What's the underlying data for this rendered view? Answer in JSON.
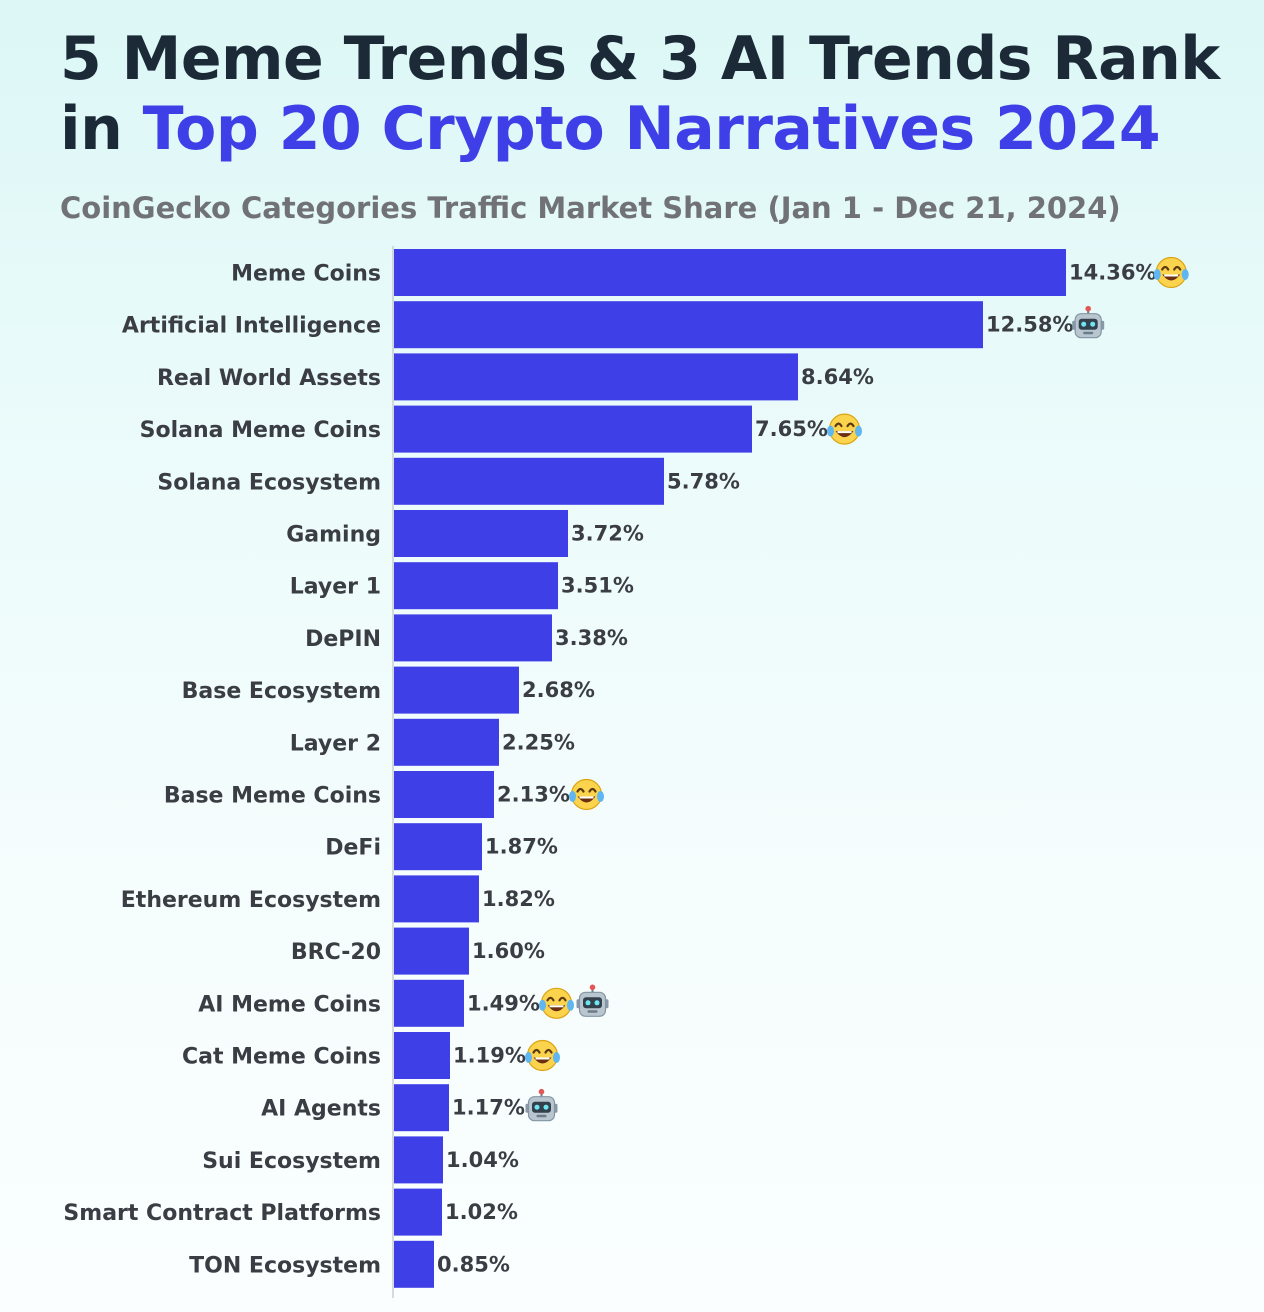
{
  "header": {
    "title_line1": "5 Meme Trends & 3 AI Trends Rank",
    "title_line2_prefix": "in ",
    "title_line2_accent": "Top 20 Crypto Narratives 2024",
    "subtitle": "CoinGecko Categories Traffic Market Share (Jan 1 - Dec 21, 2024)"
  },
  "colors": {
    "bar": "#3f3fe8",
    "title": "#1c2a38",
    "accent": "#3f3fe8",
    "subtitle": "#707278",
    "label": "#3b3d44",
    "axis": "#c9cdd1"
  },
  "chart_data": {
    "type": "bar",
    "orientation": "horizontal",
    "title": "5 Meme Trends & 3 AI Trends Rank in Top 20 Crypto Narratives 2024",
    "subtitle": "CoinGecko Categories Traffic Market Share (Jan 1 - Dec 21, 2024)",
    "xlabel": "",
    "ylabel": "",
    "xlim": [
      0,
      14.36
    ],
    "grid": false,
    "legend": "none",
    "categories": [
      "Meme Coins",
      "Artificial Intelligence",
      "Real World Assets",
      "Solana Meme Coins",
      "Solana Ecosystem",
      "Gaming",
      "Layer 1",
      "DePIN",
      "Base Ecosystem",
      "Layer 2",
      "Base Meme Coins",
      "DeFi",
      "Ethereum Ecosystem",
      "BRC-20",
      "AI Meme Coins",
      "Cat Meme Coins",
      "AI Agents",
      "Sui Ecosystem",
      "Smart Contract Platforms",
      "TON Ecosystem"
    ],
    "values": [
      14.36,
      12.58,
      8.64,
      7.65,
      5.78,
      3.72,
      3.51,
      3.38,
      2.68,
      2.25,
      2.13,
      1.87,
      1.82,
      1.6,
      1.49,
      1.19,
      1.17,
      1.04,
      1.02,
      0.85
    ],
    "value_labels": [
      "14.36%",
      "12.58%",
      "8.64%",
      "7.65%",
      "5.78%",
      "3.72%",
      "3.51%",
      "3.38%",
      "2.68%",
      "2.25%",
      "2.13%",
      "1.87%",
      "1.82%",
      "1.60%",
      "1.49%",
      "1.19%",
      "1.17%",
      "1.04%",
      "1.02%",
      "0.85%"
    ],
    "icons": [
      [
        "laughing-emoji-icon"
      ],
      [
        "robot-emoji-icon"
      ],
      [],
      [
        "laughing-emoji-icon"
      ],
      [],
      [],
      [],
      [],
      [],
      [],
      [
        "laughing-emoji-icon"
      ],
      [],
      [],
      [],
      [
        "laughing-emoji-icon",
        "robot-emoji-icon"
      ],
      [
        "laughing-emoji-icon"
      ],
      [
        "robot-emoji-icon"
      ],
      [],
      [],
      []
    ]
  }
}
